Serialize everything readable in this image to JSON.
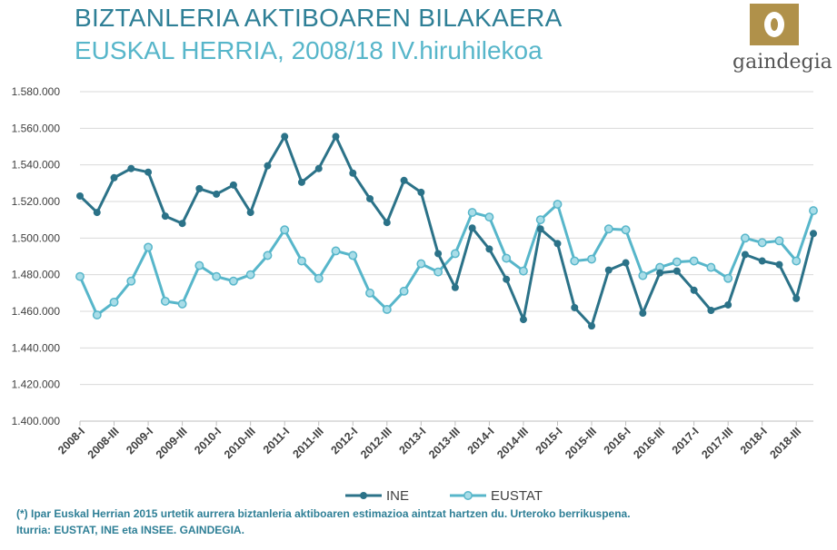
{
  "header": {
    "title_line1": "BIZTANLERIA AKTIBOAREN BILAKAERA",
    "title_line2": "EUSKAL HERRIA, 2008/18 IV.hiruhilekoa"
  },
  "logo": {
    "text": "gaindegia"
  },
  "footer": {
    "note": "(*) Ipar Euskal Herrian 2015 urtetik aurrera biztanleria aktiboaren estimazioa aintzat hartzen du. Urteroko berrikuspena.",
    "source": "Iturria: EUSTAT, INE eta INSEE. GAINDEGIA."
  },
  "colors": {
    "ine": "#2b7288",
    "eustat": "#57b6ca",
    "title": "#2e7f96",
    "logo_gold": "#b0914a"
  },
  "chart_data": {
    "type": "line",
    "title": "BIZTANLERIA AKTIBOAREN BILAKAERA",
    "ylim": [
      1400000,
      1580000
    ],
    "yticks": [
      "1.400.000",
      "1.420.000",
      "1.440.000",
      "1.460.000",
      "1.480.000",
      "1.500.000",
      "1.520.000",
      "1.540.000",
      "1.560.000",
      "1.580.000"
    ],
    "ytick_values": [
      1400000,
      1420000,
      1440000,
      1460000,
      1480000,
      1500000,
      1520000,
      1540000,
      1560000,
      1580000
    ],
    "x_tick_labels": [
      {
        "index": 0,
        "label": "2008-I"
      },
      {
        "index": 2,
        "label": "2008-III"
      },
      {
        "index": 4,
        "label": "2009-I"
      },
      {
        "index": 6,
        "label": "2009-III"
      },
      {
        "index": 8,
        "label": "2010-I"
      },
      {
        "index": 10,
        "label": "2010-III"
      },
      {
        "index": 12,
        "label": "2011-I"
      },
      {
        "index": 14,
        "label": "2011-III"
      },
      {
        "index": 16,
        "label": "2012-I"
      },
      {
        "index": 18,
        "label": "2012-III"
      },
      {
        "index": 20,
        "label": "2013-I"
      },
      {
        "index": 22,
        "label": "2013-III"
      },
      {
        "index": 24,
        "label": "2014-I"
      },
      {
        "index": 26,
        "label": "2014-III"
      },
      {
        "index": 28,
        "label": "2015-I"
      },
      {
        "index": 30,
        "label": "2015-III"
      },
      {
        "index": 32,
        "label": "2016-I"
      },
      {
        "index": 34,
        "label": "2016-III"
      },
      {
        "index": 36,
        "label": "2017-I"
      },
      {
        "index": 38,
        "label": "2017-III"
      },
      {
        "index": 40,
        "label": "2018-I"
      },
      {
        "index": 42,
        "label": "2018-III"
      }
    ],
    "grid": true,
    "legend": "bottom-center",
    "series": [
      {
        "name": "INE",
        "values": [
          1523000,
          1514000,
          1533000,
          1538000,
          1536000,
          1512000,
          1508000,
          1527000,
          1524000,
          1529000,
          1514000,
          1539500,
          1555500,
          1530500,
          1538000,
          1555500,
          1535500,
          1521500,
          1508500,
          1531500,
          1525000,
          1491500,
          1473000,
          1505500,
          1494000,
          1477500,
          1455500,
          1505000,
          1497000,
          1462000,
          1452000,
          1482500,
          1486500,
          1459000,
          1481000,
          1482000,
          1471500,
          1460500,
          1463500,
          1491000,
          1487500,
          1485500,
          1467000,
          1502500
        ]
      },
      {
        "name": "EUSTAT",
        "values": [
          1479000,
          1458000,
          1465000,
          1476500,
          1495000,
          1465500,
          1464000,
          1485000,
          1479000,
          1476500,
          1480000,
          1490500,
          1504500,
          1487500,
          1478000,
          1493000,
          1490500,
          1470000,
          1461000,
          1471000,
          1486000,
          1481500,
          1491500,
          1514000,
          1511500,
          1489000,
          1482000,
          1510000,
          1518500,
          1487500,
          1488500,
          1505000,
          1504500,
          1479500,
          1484000,
          1487000,
          1487500,
          1484000,
          1478000,
          1500000,
          1497500,
          1498500,
          1487500,
          1515000
        ]
      }
    ]
  }
}
